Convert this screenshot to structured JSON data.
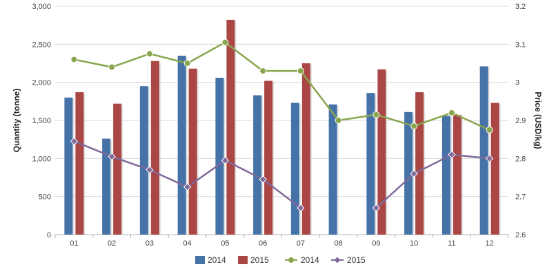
{
  "chart_data": {
    "type": "bar+line",
    "categories": [
      "01",
      "02",
      "03",
      "04",
      "05",
      "06",
      "07",
      "08",
      "09",
      "10",
      "11",
      "12"
    ],
    "bar_series": [
      {
        "name": "2014",
        "color": "#4572a7",
        "values": [
          1800,
          1260,
          1950,
          2350,
          2060,
          1830,
          1730,
          1710,
          1860,
          1610,
          1560,
          2210
        ]
      },
      {
        "name": "2015",
        "color": "#aa4643",
        "values": [
          1870,
          1720,
          2280,
          2180,
          2820,
          2020,
          2250,
          null,
          2170,
          1870,
          1570,
          1730
        ]
      }
    ],
    "line_series": [
      {
        "name": "2014",
        "color": "#89a54e",
        "marker": "circle",
        "values": [
          3.06,
          3.04,
          3.075,
          3.05,
          3.105,
          3.03,
          3.03,
          2.9,
          2.915,
          2.885,
          2.92,
          2.875
        ]
      },
      {
        "name": "2015",
        "color": "#80699b",
        "marker": "diamond",
        "values": [
          2.845,
          2.805,
          2.77,
          2.725,
          2.795,
          2.745,
          2.67,
          null,
          2.67,
          2.76,
          2.81,
          2.8
        ]
      }
    ],
    "left_axis": {
      "title": "Quantity (tonne)",
      "min": 0,
      "max": 3000,
      "ticks": [
        0,
        500,
        1000,
        1500,
        2000,
        2500,
        3000
      ],
      "tick_labels": [
        "0",
        "500",
        "1,000",
        "1,500",
        "2,000",
        "2,500",
        "3,000"
      ]
    },
    "right_axis": {
      "title": "Price (USD/kg)",
      "min": 2.6,
      "max": 3.2,
      "ticks": [
        2.6,
        2.7,
        2.8,
        2.9,
        3.0,
        3.1,
        3.2
      ],
      "tick_labels": [
        "2.6",
        "2.7",
        "2.8",
        "2.9",
        "3",
        "3.1",
        "3.2"
      ]
    },
    "grid": true,
    "legend": {
      "position": "bottom-center",
      "items": [
        {
          "label": "2014",
          "kind": "bar",
          "color": "#4572a7"
        },
        {
          "label": "2015",
          "kind": "bar",
          "color": "#aa4643"
        },
        {
          "label": "2014",
          "kind": "line",
          "color": "#89a54e",
          "marker": "circle"
        },
        {
          "label": "2015",
          "kind": "line",
          "color": "#80699b",
          "marker": "diamond"
        }
      ]
    }
  }
}
